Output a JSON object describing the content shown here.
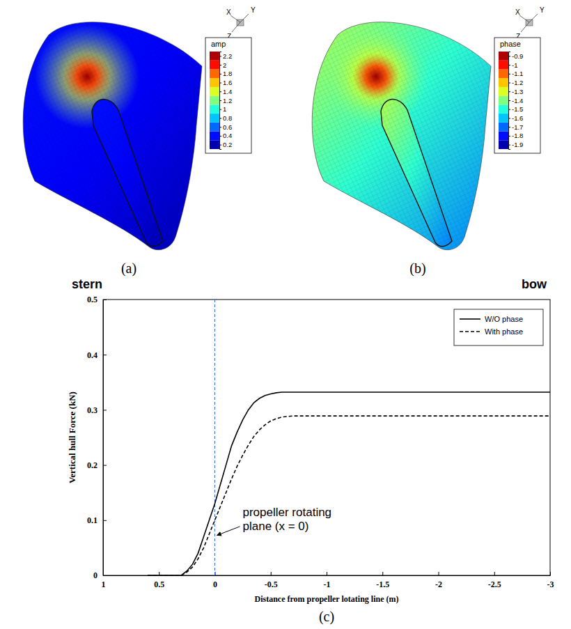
{
  "chart_data": [
    {
      "type": "surface",
      "label": "(a)",
      "axes_triad": [
        "X",
        "Y",
        "Z"
      ],
      "colorbar": {
        "title": "amp",
        "range": [
          0.1,
          2.3
        ],
        "ticks": [
          0.2,
          0.4,
          0.6,
          0.8,
          1,
          1.2,
          1.4,
          1.6,
          1.8,
          2,
          2.2
        ]
      }
    },
    {
      "type": "surface",
      "label": "(b)",
      "axes_triad": [
        "X",
        "Y",
        "Z"
      ],
      "colorbar": {
        "title": "phase",
        "range": [
          -1.95,
          -0.85
        ],
        "ticks": [
          -1.9,
          -1.8,
          -1.7,
          -1.6,
          -1.5,
          -1.4,
          -1.3,
          -1.2,
          -1.1,
          -1,
          -0.9
        ]
      }
    },
    {
      "type": "line",
      "label": "(c)",
      "side_labels": [
        "stern",
        "bow"
      ],
      "xlabel": "Distance from propeller lotating line (m)",
      "ylabel": "Vertical hull Force (kN)",
      "xlim": [
        1,
        -3
      ],
      "xticks": [
        1,
        0.5,
        0,
        -0.5,
        -1,
        -1.5,
        -2,
        -2.5,
        -3
      ],
      "ylim": [
        0,
        0.5
      ],
      "yticks": [
        0,
        0.1,
        0.2,
        0.3,
        0.4,
        0.5
      ],
      "legend": "upper right",
      "x": [
        0.6,
        0.5,
        0.4,
        0.3,
        0.25,
        0.2,
        0.15,
        0.1,
        0.05,
        0,
        -0.05,
        -0.1,
        -0.15,
        -0.2,
        -0.25,
        -0.3,
        -0.35,
        -0.4,
        -0.45,
        -0.5,
        -0.55,
        -0.6,
        -0.65,
        -0.7,
        -0.8,
        -1,
        -1.5,
        -2,
        -2.5,
        -3
      ],
      "series": [
        {
          "name": "W/O phase",
          "color": "#000000",
          "line_style": "solid",
          "values": [
            0,
            0,
            0,
            0,
            0.008,
            0.02,
            0.04,
            0.07,
            0.1,
            0.13,
            0.165,
            0.2,
            0.235,
            0.26,
            0.282,
            0.3,
            0.313,
            0.321,
            0.326,
            0.329,
            0.331,
            0.332,
            0.332,
            0.332,
            0.332,
            0.332,
            0.332,
            0.332,
            0.332,
            0.332
          ]
        },
        {
          "name": "With phase",
          "color": "#000000",
          "line_style": "dashed",
          "values": [
            0,
            0,
            0,
            0,
            0.006,
            0.015,
            0.03,
            0.05,
            0.075,
            0.1,
            0.125,
            0.15,
            0.175,
            0.198,
            0.218,
            0.236,
            0.252,
            0.264,
            0.273,
            0.28,
            0.284,
            0.287,
            0.288,
            0.289,
            0.289,
            0.289,
            0.289,
            0.289,
            0.289,
            0.289
          ]
        }
      ],
      "annotations": [
        {
          "text": "propeller rotating plane (x = 0)",
          "x": 0,
          "y": 0.07
        }
      ]
    }
  ]
}
